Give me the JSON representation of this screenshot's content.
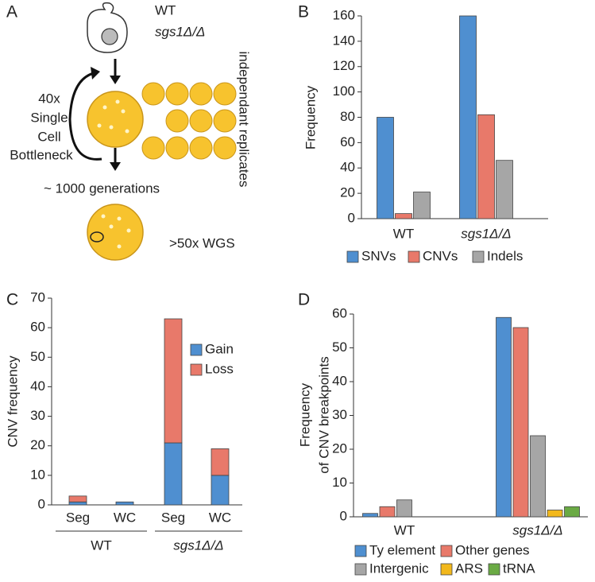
{
  "diagram": {
    "panel": "A",
    "genotype": [
      "WT",
      "sgs1Δ/Δ"
    ],
    "bottleneck": [
      "40x",
      "Single",
      "Cell",
      "Bottleneck"
    ],
    "replicates": "independant replicates",
    "generations": "~ 1000 generations",
    "sequencing": ">50x WGS"
  },
  "chart_data": [
    {
      "panel": "B",
      "type": "bar",
      "y_label": "Frequency",
      "categories": [
        "WT",
        "sgs1Δ/Δ"
      ],
      "series": [
        {
          "name": "SNVs",
          "color": "#4f8fd0",
          "values": [
            80,
            160
          ]
        },
        {
          "name": "CNVs",
          "color": "#e8796a",
          "values": [
            4,
            82
          ]
        },
        {
          "name": "Indels",
          "color": "#a6a6a6",
          "values": [
            21,
            46
          ]
        }
      ],
      "ylim": [
        0,
        160
      ],
      "yticks": [
        0,
        20,
        40,
        60,
        80,
        100,
        120,
        140,
        160
      ]
    },
    {
      "panel": "C",
      "type": "stacked_bar",
      "y_label": "CNV frequency",
      "categories": [
        "Seg",
        "WC",
        "Seg",
        "WC"
      ],
      "groups": [
        "WT",
        "sgs1Δ/Δ"
      ],
      "series": [
        {
          "name": "Gain",
          "color": "#4f8fd0",
          "values": [
            1,
            1,
            21,
            10
          ]
        },
        {
          "name": "Loss",
          "color": "#e8796a",
          "values": [
            2,
            0,
            42,
            9
          ]
        }
      ],
      "ylim": [
        0,
        70
      ],
      "yticks": [
        0,
        10,
        20,
        30,
        40,
        50,
        60,
        70
      ]
    },
    {
      "panel": "D",
      "type": "bar",
      "y_label": [
        "Frequency",
        "of CNV breakpoints"
      ],
      "categories": [
        "WT",
        "sgs1Δ/Δ"
      ],
      "series": [
        {
          "name": "Ty element",
          "color": "#4f8fd0",
          "values": [
            1,
            59
          ]
        },
        {
          "name": "Other genes",
          "color": "#e8796a",
          "values": [
            3,
            56
          ]
        },
        {
          "name": "Intergenic",
          "color": "#a6a6a6",
          "values": [
            5,
            24
          ]
        },
        {
          "name": "ARS",
          "color": "#f2b81c",
          "values": [
            0,
            2
          ]
        },
        {
          "name": "tRNA",
          "color": "#6aaa44",
          "values": [
            0,
            3
          ]
        }
      ],
      "ylim": [
        0,
        60
      ],
      "yticks": [
        0,
        10,
        20,
        30,
        40,
        50,
        60
      ]
    }
  ]
}
